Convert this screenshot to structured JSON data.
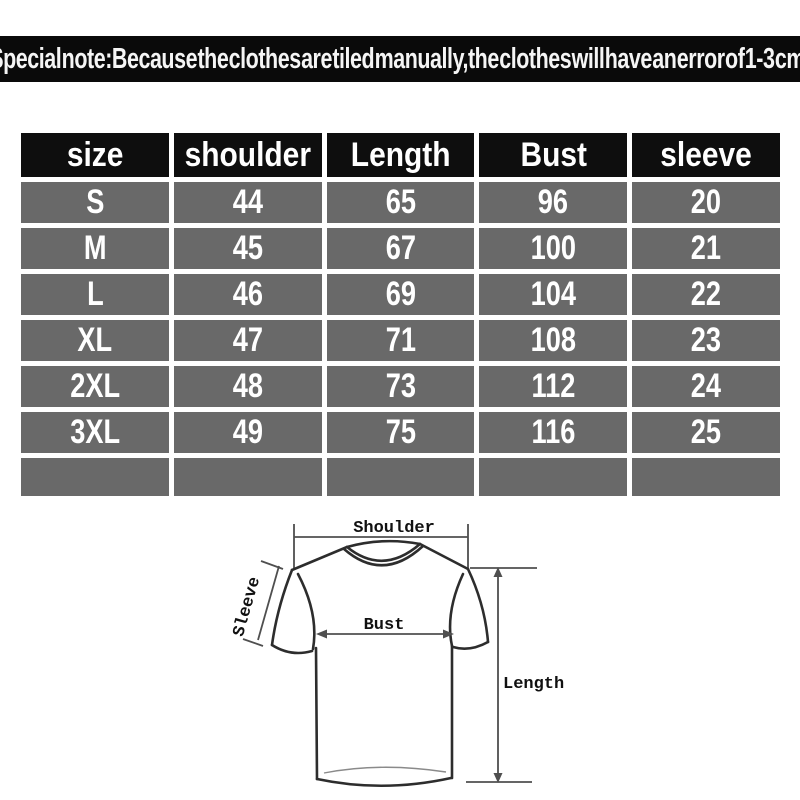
{
  "banner": {
    "text": "Special note:Because the clothes are tiled manually,the clothes will have an error of 1-3 cm."
  },
  "size_chart": {
    "columns": [
      "size",
      "shoulder",
      "Length",
      "Bust",
      "sleeve"
    ],
    "rows": [
      [
        "S",
        "44",
        "65",
        "96",
        "20"
      ],
      [
        "M",
        "45",
        "67",
        "100",
        "21"
      ],
      [
        "L",
        "46",
        "69",
        "104",
        "22"
      ],
      [
        "XL",
        "47",
        "71",
        "108",
        "23"
      ],
      [
        "2XL",
        "48",
        "73",
        "112",
        "24"
      ],
      [
        "3XL",
        "49",
        "75",
        "116",
        "25"
      ]
    ],
    "has_empty_last_row": true
  },
  "diagram": {
    "labels": {
      "shoulder": "Shoulder",
      "sleeve": "Sleeve",
      "bust": "Bust",
      "length": "Length"
    }
  },
  "colors": {
    "banner_bg": "#0a0a0a",
    "banner_text": "#f5f5f5",
    "header_bg": "#0e0e0e",
    "cell_bg": "#696969",
    "cell_text": "#ffffff",
    "shirt_line": "#2d2d2d",
    "measure_line": "#4f4f4f"
  }
}
